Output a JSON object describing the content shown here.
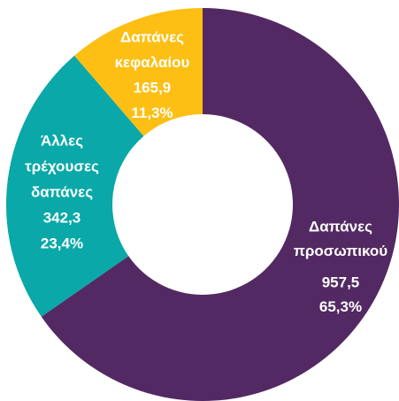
{
  "chart_data": {
    "type": "donut",
    "categories": [
      [
        "Δαπάνες",
        "προσωπικού"
      ],
      [
        "Άλλες",
        "τρέχουσες",
        "δαπάνες"
      ],
      [
        "Δαπάνες",
        "κεφαλαίου"
      ]
    ],
    "values": [
      957.5,
      342.3,
      165.9
    ],
    "value_labels": [
      "957,5",
      "342,3",
      "165,9"
    ],
    "percents": [
      65.3,
      23.4,
      11.3
    ],
    "percent_labels": [
      "65,3%",
      "23,4%",
      "11,3%"
    ],
    "colors": [
      "#532963",
      "#0aa8a8",
      "#fdbf13"
    ]
  }
}
